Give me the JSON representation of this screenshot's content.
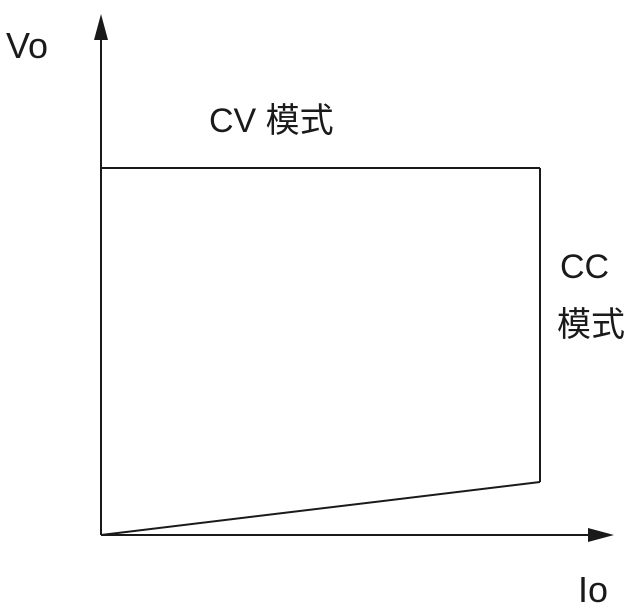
{
  "diagram": {
    "y_axis_label": "Vo",
    "x_axis_label": "Io",
    "cv_mode_label": "CV 模式",
    "cc_mode_label_line1": "CC",
    "cc_mode_label_line2": "模式",
    "line_color": "#1a1a1a"
  }
}
